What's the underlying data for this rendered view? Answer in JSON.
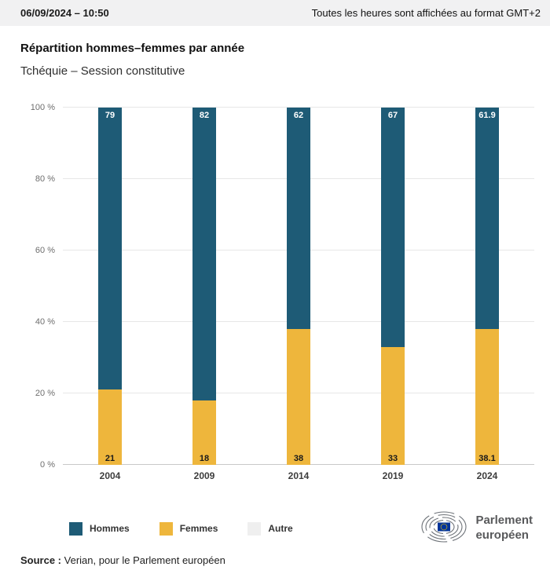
{
  "header": {
    "datetime": "06/09/2024 – 10:50",
    "timezone_note": "Toutes les heures sont affichées au format GMT+2"
  },
  "titles": {
    "title": "Répartition hommes–femmes par année",
    "subtitle": "Tchéquie – Session constitutive"
  },
  "chart_data": {
    "type": "bar",
    "stacked": true,
    "title": "Répartition hommes–femmes par année",
    "categories": [
      "2004",
      "2009",
      "2014",
      "2019",
      "2024"
    ],
    "series": [
      {
        "name": "Hommes",
        "color": "#1e5b76",
        "values": [
          79,
          82,
          62,
          67,
          61.9
        ]
      },
      {
        "name": "Femmes",
        "color": "#eeb63c",
        "values": [
          21,
          18,
          38,
          33,
          38.1
        ]
      },
      {
        "name": "Autre",
        "color": "#efefef",
        "values": [
          0,
          0,
          0,
          0,
          0
        ]
      }
    ],
    "ylim": [
      0,
      100
    ],
    "y_ticks": [
      "100 %",
      "80 %",
      "60 %",
      "40 %",
      "20 %",
      "0 %"
    ],
    "grid": true,
    "legend_position": "bottom"
  },
  "footer": {
    "source_label": "Source :",
    "source_text": "Verian, pour le Parlement européen",
    "logo": {
      "line1": "Parlement",
      "line2": "européen",
      "flag_blue": "#003399",
      "star_yellow": "#ffcc00"
    }
  }
}
